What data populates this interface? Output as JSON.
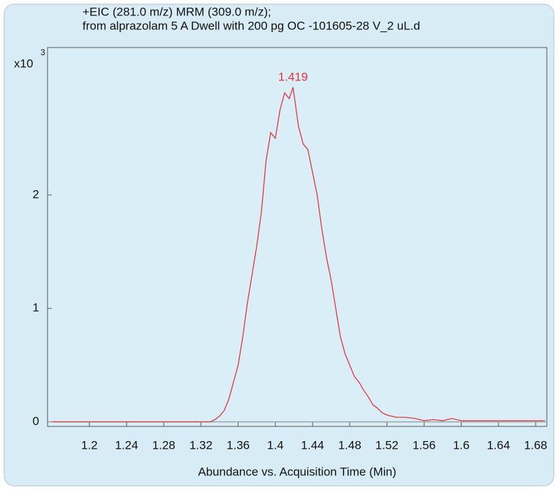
{
  "chart_data": {
    "type": "line",
    "title_lines": [
      "+EIC (281.0 m/z) MRM (309.0 m/z);",
      "from alprazolam 5 A Dwell with 200 pg OC -101605-28 V_2 uL.d"
    ],
    "y_scale_label": "x10",
    "y_scale_exponent": "3",
    "x_label": "Abundance vs. Acquisition Time (Min)",
    "color": "#e2343c",
    "x": [
      1.16,
      1.2,
      1.25,
      1.3,
      1.33,
      1.335,
      1.34,
      1.345,
      1.35,
      1.355,
      1.36,
      1.365,
      1.37,
      1.375,
      1.38,
      1.385,
      1.39,
      1.395,
      1.4,
      1.405,
      1.41,
      1.415,
      1.419,
      1.425,
      1.43,
      1.435,
      1.44,
      1.445,
      1.45,
      1.455,
      1.46,
      1.465,
      1.47,
      1.475,
      1.48,
      1.485,
      1.49,
      1.495,
      1.5,
      1.505,
      1.51,
      1.515,
      1.52,
      1.525,
      1.53,
      1.54,
      1.55,
      1.56,
      1.57,
      1.58,
      1.59,
      1.6,
      1.62,
      1.64,
      1.66,
      1.69
    ],
    "values": [
      0,
      0,
      0,
      0,
      0,
      0.02,
      0.05,
      0.1,
      0.2,
      0.35,
      0.5,
      0.75,
      1.05,
      1.3,
      1.55,
      1.85,
      2.3,
      2.55,
      2.5,
      2.75,
      2.9,
      2.85,
      2.95,
      2.6,
      2.45,
      2.4,
      2.2,
      2.0,
      1.7,
      1.45,
      1.25,
      1.0,
      0.75,
      0.6,
      0.5,
      0.4,
      0.35,
      0.28,
      0.22,
      0.15,
      0.12,
      0.08,
      0.06,
      0.05,
      0.04,
      0.04,
      0.03,
      0.01,
      0.02,
      0.01,
      0.03,
      0.01,
      0.01,
      0.01,
      0.01,
      0.01
    ],
    "annotations": [
      {
        "x": 1.419,
        "y": 2.95,
        "text": "1.419"
      }
    ],
    "xlim": [
      1.155,
      1.692
    ],
    "xticks": [
      1.2,
      1.24,
      1.28,
      1.32,
      1.36,
      1.4,
      1.44,
      1.48,
      1.52,
      1.56,
      1.6,
      1.64,
      1.68
    ],
    "ylim": [
      -0.04,
      3.3
    ],
    "yticks": [
      0,
      1,
      2
    ]
  }
}
